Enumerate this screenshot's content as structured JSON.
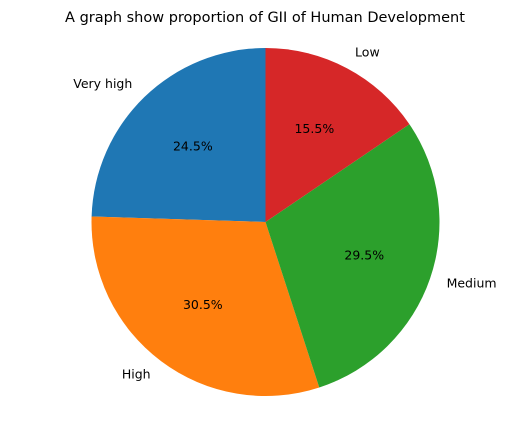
{
  "chart_data": {
    "type": "pie",
    "title": "A graph show proportion of GII of Human Development",
    "categories": [
      "Very high",
      "High",
      "Medium",
      "Low"
    ],
    "values": [
      24.5,
      30.5,
      29.5,
      15.5
    ],
    "percent_labels": [
      "24.5%",
      "30.5%",
      "29.5%",
      "15.5%"
    ],
    "colors": [
      "#1f77b4",
      "#ff7f0e",
      "#2ca02c",
      "#d62728"
    ],
    "start_angle_deg": 90,
    "direction": "counterclockwise",
    "legend": "none"
  }
}
